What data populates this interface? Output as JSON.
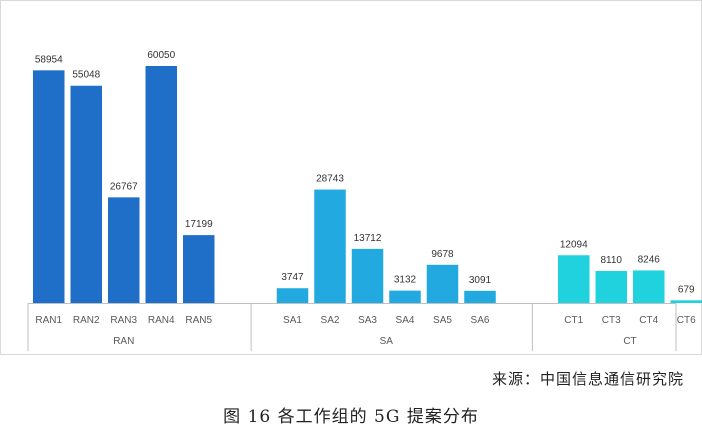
{
  "chart_data": {
    "type": "bar",
    "title": "",
    "xlabel": "",
    "ylabel": "",
    "ylim": [
      0,
      62000
    ],
    "grid": false,
    "legend": "none",
    "groups": [
      {
        "name": "RAN",
        "color": "#1f6fc9",
        "categories": [
          "RAN1",
          "RAN2",
          "RAN3",
          "RAN4",
          "RAN5"
        ],
        "values": [
          58954,
          55048,
          26767,
          60050,
          17199
        ]
      },
      {
        "name": "SA",
        "color": "#22a9e0",
        "categories": [
          "SA1",
          "SA2",
          "SA3",
          "SA4",
          "SA5",
          "SA6"
        ],
        "values": [
          3747,
          28743,
          13712,
          3132,
          9678,
          3091
        ]
      },
      {
        "name": "CT",
        "color": "#1fd2dd",
        "categories": [
          "CT1",
          "CT3",
          "CT4",
          "CT6"
        ],
        "values": [
          12094,
          8110,
          8246,
          679
        ]
      }
    ]
  },
  "source": "来源：中国信息通信研究院",
  "caption": "图 16 各工作组的 5G 提案分布"
}
